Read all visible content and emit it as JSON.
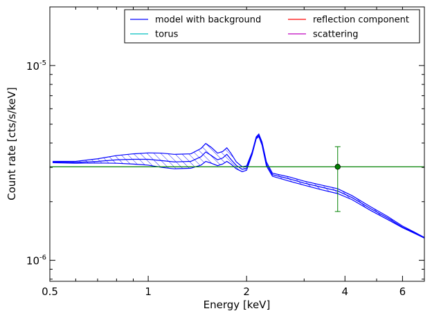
{
  "chart_data": {
    "type": "line",
    "xlabel": "Energy [keV]",
    "ylabel": "Count rate [cts/s/keV]",
    "x_scale": "log",
    "y_scale": "log",
    "xlim": [
      0.5,
      7.0
    ],
    "ylim": [
      7.8e-07,
      2e-05
    ],
    "x_ticks": [
      {
        "value": 0.5,
        "label": "0.5"
      },
      {
        "value": 1,
        "label": "1"
      },
      {
        "value": 2,
        "label": "2"
      },
      {
        "value": 4,
        "label": "4"
      },
      {
        "value": 6,
        "label": "6"
      }
    ],
    "y_ticks": [
      {
        "value": 1e-06,
        "base": "10",
        "exp": "-6"
      },
      {
        "value": 1e-05,
        "base": "10",
        "exp": "-5"
      }
    ],
    "grid": false,
    "legend": {
      "position": "top-right",
      "columns": 2,
      "entries": [
        {
          "label": "model with background",
          "color": "#0000ff"
        },
        {
          "label": "reflection component",
          "color": "#ff0000"
        },
        {
          "label": "torus",
          "color": "#00bfbf"
        },
        {
          "label": "scattering",
          "color": "#bf00bf"
        }
      ]
    },
    "series": [
      {
        "name": "model with background",
        "color": "#0000ff",
        "band": true,
        "upper": [
          [
            0.51,
            3.22e-06
          ],
          [
            0.6,
            3.22e-06
          ],
          [
            0.7,
            3.32e-06
          ],
          [
            0.8,
            3.45e-06
          ],
          [
            0.9,
            3.52e-06
          ],
          [
            1.0,
            3.56e-06
          ],
          [
            1.1,
            3.55e-06
          ],
          [
            1.2,
            3.5e-06
          ],
          [
            1.35,
            3.52e-06
          ],
          [
            1.45,
            3.75e-06
          ],
          [
            1.5,
            3.98e-06
          ],
          [
            1.56,
            3.8e-06
          ],
          [
            1.63,
            3.55e-06
          ],
          [
            1.69,
            3.62e-06
          ],
          [
            1.74,
            3.78e-06
          ],
          [
            1.79,
            3.55e-06
          ],
          [
            1.86,
            3.2e-06
          ],
          [
            1.94,
            3.02e-06
          ],
          [
            2.0,
            3.05e-06
          ],
          [
            2.08,
            3.6e-06
          ],
          [
            2.14,
            4.3e-06
          ],
          [
            2.18,
            4.45e-06
          ],
          [
            2.23,
            4.05e-06
          ],
          [
            2.3,
            3.2e-06
          ],
          [
            2.4,
            2.8e-06
          ],
          [
            2.7,
            2.68e-06
          ],
          [
            3.0,
            2.55e-06
          ],
          [
            3.4,
            2.43e-06
          ],
          [
            3.8,
            2.33e-06
          ],
          [
            4.2,
            2.15e-06
          ],
          [
            4.8,
            1.88e-06
          ],
          [
            5.4,
            1.68e-06
          ],
          [
            6.0,
            1.5e-06
          ],
          [
            6.5,
            1.4e-06
          ],
          [
            7.0,
            1.31e-06
          ]
        ],
        "lower": [
          [
            0.51,
            3.17e-06
          ],
          [
            0.6,
            3.15e-06
          ],
          [
            0.7,
            3.16e-06
          ],
          [
            0.8,
            3.15e-06
          ],
          [
            0.9,
            3.12e-06
          ],
          [
            1.0,
            3.08e-06
          ],
          [
            1.1,
            3e-06
          ],
          [
            1.2,
            2.95e-06
          ],
          [
            1.35,
            2.97e-06
          ],
          [
            1.45,
            3.08e-06
          ],
          [
            1.5,
            3.22e-06
          ],
          [
            1.56,
            3.15e-06
          ],
          [
            1.63,
            3.06e-06
          ],
          [
            1.69,
            3.12e-06
          ],
          [
            1.74,
            3.22e-06
          ],
          [
            1.79,
            3.12e-06
          ],
          [
            1.86,
            2.95e-06
          ],
          [
            1.94,
            2.85e-06
          ],
          [
            2.0,
            2.9e-06
          ],
          [
            2.08,
            3.5e-06
          ],
          [
            2.14,
            4.2e-06
          ],
          [
            2.18,
            4.32e-06
          ],
          [
            2.23,
            3.9e-06
          ],
          [
            2.3,
            3.05e-06
          ],
          [
            2.4,
            2.7e-06
          ],
          [
            2.7,
            2.55e-06
          ],
          [
            3.0,
            2.43e-06
          ],
          [
            3.4,
            2.3e-06
          ],
          [
            3.8,
            2.2e-06
          ],
          [
            4.2,
            2.05e-06
          ],
          [
            4.8,
            1.8e-06
          ],
          [
            5.4,
            1.62e-06
          ],
          [
            6.0,
            1.47e-06
          ],
          [
            6.5,
            1.38e-06
          ],
          [
            7.0,
            1.3e-06
          ]
        ],
        "central": [
          [
            0.51,
            3.2e-06
          ],
          [
            0.6,
            3.18e-06
          ],
          [
            0.7,
            3.22e-06
          ],
          [
            0.8,
            3.28e-06
          ],
          [
            0.9,
            3.3e-06
          ],
          [
            1.0,
            3.3e-06
          ],
          [
            1.1,
            3.25e-06
          ],
          [
            1.2,
            3.2e-06
          ],
          [
            1.35,
            3.22e-06
          ],
          [
            1.45,
            3.4e-06
          ],
          [
            1.5,
            3.6e-06
          ],
          [
            1.56,
            3.45e-06
          ],
          [
            1.63,
            3.28e-06
          ],
          [
            1.69,
            3.35e-06
          ],
          [
            1.74,
            3.5e-06
          ],
          [
            1.79,
            3.3e-06
          ],
          [
            1.86,
            3.07e-06
          ],
          [
            1.94,
            2.93e-06
          ],
          [
            2.0,
            2.97e-06
          ],
          [
            2.08,
            3.55e-06
          ],
          [
            2.14,
            4.25e-06
          ],
          [
            2.18,
            4.38e-06
          ],
          [
            2.23,
            3.98e-06
          ],
          [
            2.3,
            3.12e-06
          ],
          [
            2.4,
            2.75e-06
          ],
          [
            2.7,
            2.62e-06
          ],
          [
            3.0,
            2.49e-06
          ],
          [
            3.4,
            2.37e-06
          ],
          [
            3.8,
            2.27e-06
          ],
          [
            4.2,
            2.1e-06
          ],
          [
            4.8,
            1.84e-06
          ],
          [
            5.4,
            1.65e-06
          ],
          [
            6.0,
            1.48e-06
          ],
          [
            6.5,
            1.39e-06
          ],
          [
            7.0,
            1.3e-06
          ]
        ]
      },
      {
        "name": "background",
        "color": "#008000",
        "points": [
          [
            0.5,
            3.02e-06
          ],
          [
            7.0,
            3.02e-06
          ]
        ]
      }
    ],
    "data_points": [
      {
        "x": 3.8,
        "y": 3.02e-06,
        "yerr_low": 1.78e-06,
        "yerr_high": 3.83e-06,
        "color": "#008000"
      }
    ]
  }
}
